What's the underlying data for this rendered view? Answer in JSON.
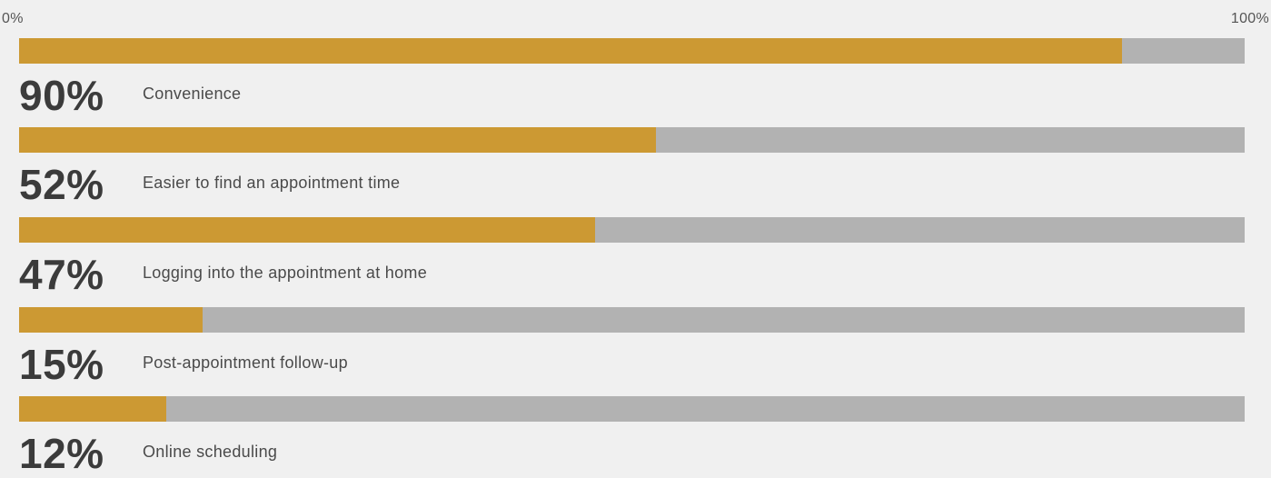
{
  "chart_data": {
    "type": "bar",
    "orientation": "horizontal",
    "xlim": [
      0,
      100
    ],
    "axis_min_label": "0%",
    "axis_max_label": "100%",
    "colors": {
      "fill": "#cc9933",
      "track": "#b2b2b2"
    },
    "categories": [
      "Convenience",
      "Easier to find an appointment time",
      "Logging into the appointment at home",
      "Post-appointment follow-up",
      "Online scheduling"
    ],
    "values": [
      90,
      52,
      47,
      15,
      12
    ],
    "value_labels": [
      "90%",
      "52%",
      "47%",
      "15%",
      "12%"
    ]
  }
}
